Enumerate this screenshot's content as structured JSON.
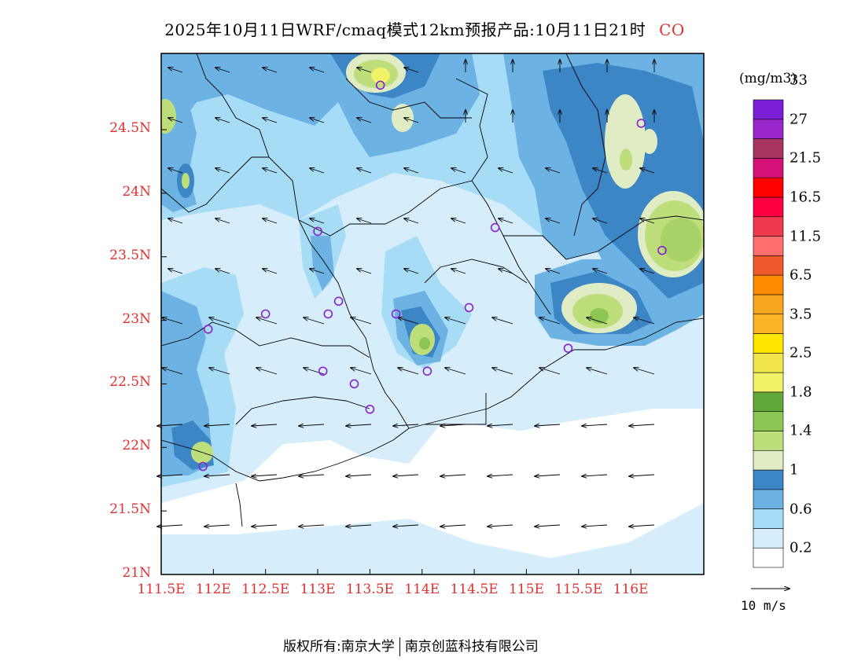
{
  "title": {
    "main": "2025年10月11日WRF/cmaq模式12km预报产品:10月11日21时",
    "pollutant": "CO"
  },
  "axes": {
    "lat_labels": [
      "24.5N",
      "24N",
      "23.5N",
      "23N",
      "22.5N",
      "22N",
      "21.5N",
      "21N"
    ],
    "lon_labels": [
      "111.5E",
      "112E",
      "112.5E",
      "113E",
      "113.5E",
      "114E",
      "114.5E",
      "115E",
      "115.5E",
      "116E"
    ],
    "lat_range": [
      21,
      25.1
    ],
    "lon_range": [
      111.5,
      116.7
    ]
  },
  "colorbar": {
    "unit": "(mg/m3)",
    "labels": [
      "0.2",
      "0.6",
      "1",
      "1.4",
      "1.8",
      "2.5",
      "3.5",
      "6.5",
      "11.5",
      "16.5",
      "21.5",
      "27",
      "33"
    ],
    "colors": [
      "#ffffff",
      "#d6eefb",
      "#a6dcf6",
      "#6cb3e3",
      "#3d86c6",
      "#dfecc4",
      "#bede7c",
      "#8cc653",
      "#62a83b",
      "#f2f268",
      "#f3e54c",
      "#fde500",
      "#fbb426",
      "#f7a51d",
      "#ff8c00",
      "#ee5a2c",
      "#ff6d6d",
      "#ef3a4e",
      "#ff0040",
      "#ff0000",
      "#d4127a",
      "#a83462",
      "#9a27cc",
      "#7b1fd6"
    ]
  },
  "wind_reference": {
    "label": "10 m/s"
  },
  "stations": [
    {
      "lon": 113.6,
      "lat": 24.85
    },
    {
      "lon": 116.1,
      "lat": 24.55
    },
    {
      "lon": 113.0,
      "lat": 23.7
    },
    {
      "lon": 114.7,
      "lat": 23.73
    },
    {
      "lon": 116.3,
      "lat": 23.55
    },
    {
      "lon": 112.5,
      "lat": 23.05
    },
    {
      "lon": 113.1,
      "lat": 23.05
    },
    {
      "lon": 113.2,
      "lat": 23.15
    },
    {
      "lon": 113.75,
      "lat": 23.05
    },
    {
      "lon": 114.45,
      "lat": 23.1
    },
    {
      "lon": 111.95,
      "lat": 22.93
    },
    {
      "lon": 115.4,
      "lat": 22.78
    },
    {
      "lon": 113.05,
      "lat": 22.6
    },
    {
      "lon": 113.35,
      "lat": 22.5
    },
    {
      "lon": 114.05,
      "lat": 22.6
    },
    {
      "lon": 113.5,
      "lat": 22.3
    },
    {
      "lon": 111.9,
      "lat": 21.85
    }
  ],
  "footer": {
    "left": "版权所有:南京大学",
    "right": "南京创蓝科技有限公司"
  }
}
